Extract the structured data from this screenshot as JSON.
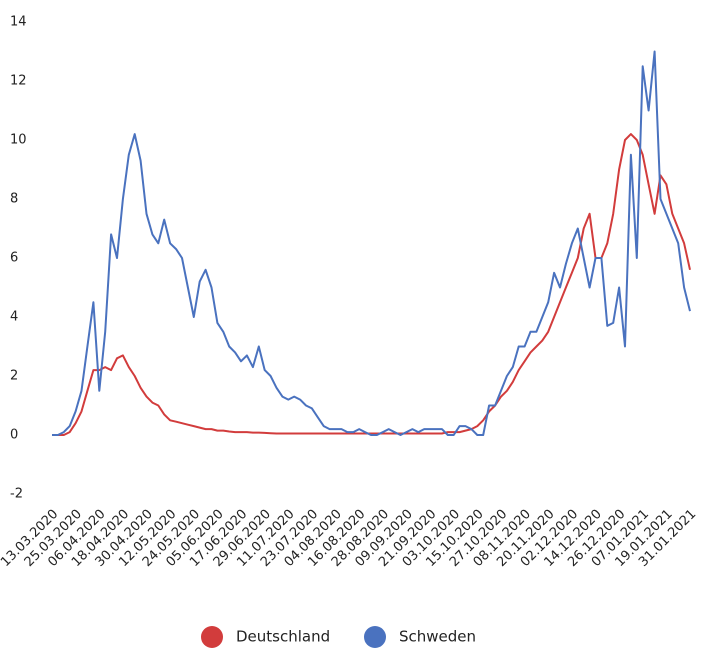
{
  "chart_data": {
    "type": "line",
    "categories": [
      "13.03.2020",
      null,
      null,
      null,
      "25.03.2020",
      null,
      null,
      null,
      "06.04.2020",
      null,
      null,
      null,
      "18.04.2020",
      null,
      null,
      null,
      "30.04.2020",
      null,
      null,
      null,
      "12.05.2020",
      null,
      null,
      null,
      "24.05.2020",
      null,
      null,
      null,
      "05.06.2020",
      null,
      null,
      null,
      "17.06.2020",
      null,
      null,
      null,
      "29.06.2020",
      null,
      null,
      null,
      "11.07.2020",
      null,
      null,
      null,
      "23.07.2020",
      null,
      null,
      null,
      "04.08.2020",
      null,
      null,
      null,
      "16.08.2020",
      null,
      null,
      null,
      "28.08.2020",
      null,
      null,
      null,
      "09.09.2020",
      null,
      null,
      null,
      "21.09.2020",
      null,
      null,
      null,
      "03.10.2020",
      null,
      null,
      null,
      "15.10.2020",
      null,
      null,
      null,
      "27.10.2020",
      null,
      null,
      null,
      "08.11.2020",
      null,
      null,
      null,
      "20.11.2020",
      null,
      null,
      null,
      "02.12.2020",
      null,
      null,
      null,
      "14.12.2020",
      null,
      null,
      null,
      "26.12.2020",
      null,
      null,
      null,
      "07.01.2021",
      null,
      null,
      null,
      "19.01.2021",
      null,
      null,
      null,
      "31.01.2021"
    ],
    "series": [
      {
        "name": "Deutschland",
        "color": "#d23c3c",
        "values": [
          0,
          0,
          0,
          0.1,
          0.4,
          0.8,
          1.5,
          2.2,
          2.2,
          2.3,
          2.2,
          2.6,
          2.7,
          2.3,
          2,
          1.6,
          1.3,
          1.1,
          1,
          0.7,
          0.5,
          0.45,
          0.4,
          0.35,
          0.3,
          0.25,
          0.2,
          0.2,
          0.15,
          0.15,
          0.12,
          0.1,
          0.1,
          0.1,
          0.08,
          0.08,
          0.07,
          0.06,
          0.05,
          0.05,
          0.05,
          0.05,
          0.05,
          0.05,
          0.05,
          0.05,
          0.05,
          0.05,
          0.05,
          0.05,
          0.05,
          0.05,
          0.05,
          0.05,
          0.05,
          0.05,
          0.05,
          0.05,
          0.05,
          0.05,
          0.05,
          0.05,
          0.05,
          0.05,
          0.05,
          0.05,
          0.05,
          0.1,
          0.1,
          0.1,
          0.15,
          0.2,
          0.3,
          0.5,
          0.8,
          1,
          1.3,
          1.5,
          1.8,
          2.2,
          2.5,
          2.8,
          3,
          3.2,
          3.5,
          4,
          4.5,
          5,
          5.5,
          6,
          7,
          7.5,
          6,
          6,
          6.5,
          7.5,
          9,
          10,
          10.2,
          10,
          9.5,
          8.5,
          7.5,
          8.8,
          8.5,
          7.5,
          7,
          6.5,
          5.6
        ]
      },
      {
        "name": "Schweden",
        "color": "#4a72bf",
        "values": [
          0,
          0,
          0.1,
          0.3,
          0.8,
          1.5,
          3,
          4.5,
          1.5,
          3.5,
          6.8,
          6,
          8,
          9.5,
          10.2,
          9.3,
          7.5,
          6.8,
          6.5,
          7.3,
          6.5,
          6.3,
          6,
          5,
          4,
          5.2,
          5.6,
          5,
          3.8,
          3.5,
          3,
          2.8,
          2.5,
          2.7,
          2.3,
          3,
          2.2,
          2,
          1.6,
          1.3,
          1.2,
          1.3,
          1.2,
          1,
          0.9,
          0.6,
          0.3,
          0.2,
          0.2,
          0.2,
          0.1,
          0.1,
          0.2,
          0.1,
          0,
          0,
          0.1,
          0.2,
          0.1,
          0,
          0.1,
          0.2,
          0.1,
          0.2,
          0.2,
          0.2,
          0.2,
          0,
          0,
          0.3,
          0.3,
          0.2,
          0,
          0,
          1,
          1,
          1.5,
          2,
          2.3,
          3,
          3,
          3.5,
          3.5,
          4,
          4.5,
          5.5,
          5,
          5.8,
          6.5,
          7,
          6,
          5,
          6,
          6,
          3.7,
          3.8,
          5,
          3,
          9.5,
          6,
          12.5,
          11,
          13,
          8,
          7.5,
          7,
          6.5,
          5,
          4.2
        ]
      }
    ],
    "ylim": [
      -2,
      14
    ],
    "yticks": [
      -2,
      0,
      2,
      4,
      6,
      8,
      10,
      12,
      14
    ],
    "grid": false,
    "legend": "bottom"
  }
}
